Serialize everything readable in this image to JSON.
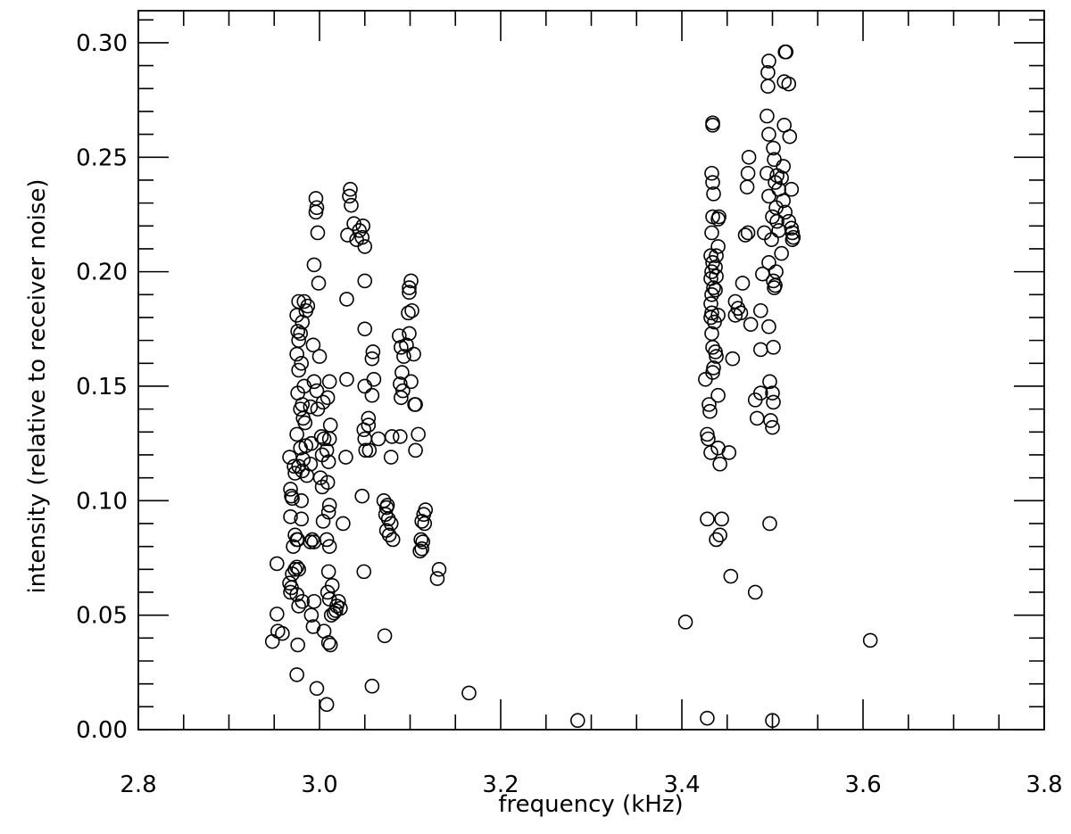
{
  "chart_data": {
    "type": "scatter",
    "x_label": "frequency (kHz)",
    "y_label": "intensity (relative to receiver noise)",
    "xlim": [
      2.8,
      3.8
    ],
    "ylim": [
      0,
      0.314
    ],
    "xticks": [
      2.8,
      {
        "value": 3,
        "label": "3.0"
      },
      3.2,
      3.4,
      3.6,
      3.8
    ],
    "yticks": [
      {
        "value": 0,
        "label": "0.00"
      },
      0.05,
      {
        "value": 0.1,
        "label": "0.10"
      },
      0.15,
      {
        "value": 0.2,
        "label": "0.20"
      },
      0.25,
      {
        "value": 0.3,
        "label": "0.30"
      }
    ],
    "xminorticks": [
      2.85,
      2.9,
      2.95,
      3.05,
      3.1,
      3.15,
      3.25,
      3.3,
      3.35,
      3.45,
      3.5,
      3.55,
      3.65,
      3.7,
      3.75
    ],
    "yminorticks": [
      0.01,
      0.02,
      0.03,
      0.04,
      0.06,
      0.07,
      0.08,
      0.09,
      0.11,
      0.12,
      0.13,
      0.14,
      0.16,
      0.17,
      0.18,
      0.19,
      0.21,
      0.22,
      0.23,
      0.24,
      0.26,
      0.27,
      0.28,
      0.29,
      0.31
    ],
    "color": "#000000",
    "x": [
      2.948,
      2.953,
      2.953,
      2.954,
      2.959,
      2.975,
      2.997,
      3.008,
      3.058,
      3.072,
      3.165,
      3.285,
      3.404,
      3.428,
      3.5,
      3.608,
      3.132,
      3.13,
      2.967,
      2.972,
      2.968,
      2.97,
      2.968,
      2.973,
      2.971,
      2.975,
      2.973,
      2.969,
      2.968,
      2.975,
      2.977,
      2.97,
      2.967,
      2.973,
      2.969,
      2.977,
      2.975,
      2.976,
      2.977,
      2.975,
      2.977,
      2.976,
      2.979,
      2.975,
      2.979,
      2.977,
      2.976,
      2.975,
      2.977,
      2.976,
      2.983,
      2.985,
      2.981,
      2.979,
      2.98,
      2.983,
      2.981,
      2.984,
      2.985,
      2.981,
      2.98,
      2.98,
      2.99,
      2.981,
      2.986,
      2.982,
      2.982,
      2.987,
      2.994,
      2.993,
      2.994,
      2.99,
      2.991,
      2.99,
      2.992,
      2.994,
      2.994,
      2.991,
      2.993,
      2.996,
      2.996,
      2.997,
      2.998,
      2.999,
      3.0,
      2.997,
      2.998,
      3.002,
      3.003,
      3.001,
      3.003,
      3.004,
      3.005,
      3.004,
      3.005,
      3.011,
      3.009,
      3.012,
      3.011,
      3.008,
      3.01,
      3.009,
      3.011,
      3.01,
      3.008,
      3.011,
      3.01,
      3.009,
      3.011,
      3.013,
      3.01,
      3.012,
      3.014,
      3.021,
      3.019,
      3.023,
      3.018,
      3.016,
      3.026,
      3.029,
      3.03,
      3.03,
      3.031,
      3.034,
      3.033,
      3.035,
      3.038,
      3.041,
      3.044,
      3.048,
      3.047,
      3.05,
      3.05,
      3.05,
      3.05,
      3.049,
      3.05,
      3.051,
      3.047,
      3.049,
      3.059,
      3.058,
      3.06,
      3.058,
      3.054,
      3.054,
      3.055,
      3.065,
      3.071,
      3.075,
      3.073,
      3.076,
      3.079,
      3.074,
      3.077,
      3.081,
      3.079,
      3.08,
      3.074,
      3.088,
      3.09,
      3.093,
      3.091,
      3.089,
      3.092,
      3.09,
      3.089,
      3.101,
      3.099,
      3.099,
      3.098,
      3.102,
      3.099,
      3.096,
      3.104,
      3.101,
      3.105,
      3.106,
      3.106,
      3.109,
      3.117,
      3.115,
      3.113,
      3.116,
      3.112,
      3.114,
      3.113,
      3.111,
      3.434,
      3.434,
      3.433,
      3.434,
      3.435,
      3.434,
      3.433,
      3.432,
      3.434,
      3.433,
      3.432,
      3.435,
      3.433,
      3.432,
      3.433,
      3.432,
      3.436,
      3.433,
      3.434,
      3.437,
      3.438,
      3.435,
      3.434,
      3.426,
      3.44,
      3.43,
      3.431,
      3.428,
      3.429,
      3.432,
      3.44,
      3.442,
      3.452,
      3.428,
      3.444,
      3.442,
      3.438,
      3.44,
      3.441,
      3.44,
      3.438,
      3.437,
      3.438,
      3.437,
      3.44,
      3.459,
      3.462,
      3.459,
      3.465,
      3.456,
      3.467,
      3.47,
      3.473,
      3.472,
      3.473,
      3.474,
      3.476,
      3.454,
      3.496,
      3.495,
      3.495,
      3.494,
      3.496,
      3.494,
      3.496,
      3.491,
      3.496,
      3.489,
      3.487,
      3.496,
      3.487,
      3.497,
      3.487,
      3.481,
      3.483,
      3.481,
      3.498,
      3.5,
      3.497,
      3.501,
      3.502,
      3.505,
      3.503,
      3.507,
      3.504,
      3.5,
      3.505,
      3.507,
      3.499,
      3.51,
      3.504,
      3.501,
      3.503,
      3.502,
      3.501,
      3.5,
      3.501,
      3.514,
      3.515,
      3.513,
      3.518,
      3.513,
      3.519,
      3.512,
      3.51,
      3.521,
      3.512,
      3.514,
      3.518,
      3.521,
      3.522,
      3.523,
      3.522
    ],
    "values": [
      0.0385,
      0.0725,
      0.0505,
      0.043,
      0.042,
      0.024,
      0.018,
      0.011,
      0.019,
      0.041,
      0.016,
      0.004,
      0.047,
      0.005,
      0.004,
      0.039,
      0.07,
      0.066,
      0.119,
      0.115,
      0.105,
      0.101,
      0.093,
      0.085,
      0.08,
      0.083,
      0.07,
      0.062,
      0.06,
      0.059,
      0.07,
      0.068,
      0.064,
      0.112,
      0.102,
      0.187,
      0.181,
      0.174,
      0.17,
      0.164,
      0.157,
      0.147,
      0.14,
      0.129,
      0.123,
      0.115,
      0.083,
      0.071,
      0.054,
      0.037,
      0.187,
      0.183,
      0.178,
      0.173,
      0.16,
      0.15,
      0.142,
      0.134,
      0.124,
      0.113,
      0.1,
      0.092,
      0.082,
      0.056,
      0.111,
      0.118,
      0.136,
      0.185,
      0.203,
      0.168,
      0.152,
      0.141,
      0.125,
      0.116,
      0.083,
      0.082,
      0.056,
      0.05,
      0.045,
      0.226,
      0.232,
      0.228,
      0.217,
      0.195,
      0.163,
      0.148,
      0.14,
      0.128,
      0.12,
      0.11,
      0.106,
      0.091,
      0.043,
      0.143,
      0.127,
      0.152,
      0.145,
      0.133,
      0.127,
      0.122,
      0.117,
      0.108,
      0.098,
      0.095,
      0.083,
      0.08,
      0.069,
      0.06,
      0.057,
      0.05,
      0.038,
      0.037,
      0.063,
      0.056,
      0.054,
      0.053,
      0.052,
      0.051,
      0.09,
      0.119,
      0.153,
      0.188,
      0.216,
      0.236,
      0.233,
      0.229,
      0.221,
      0.214,
      0.218,
      0.22,
      0.215,
      0.211,
      0.196,
      0.175,
      0.15,
      0.131,
      0.127,
      0.122,
      0.102,
      0.069,
      0.165,
      0.162,
      0.153,
      0.146,
      0.136,
      0.133,
      0.122,
      0.127,
      0.1,
      0.098,
      0.094,
      0.092,
      0.09,
      0.087,
      0.085,
      0.083,
      0.119,
      0.128,
      0.097,
      0.172,
      0.167,
      0.163,
      0.156,
      0.151,
      0.148,
      0.145,
      0.128,
      0.196,
      0.193,
      0.191,
      0.182,
      0.183,
      0.173,
      0.168,
      0.164,
      0.152,
      0.142,
      0.142,
      0.122,
      0.129,
      0.096,
      0.094,
      0.091,
      0.09,
      0.083,
      0.082,
      0.079,
      0.078,
      0.265,
      0.264,
      0.243,
      0.239,
      0.234,
      0.224,
      0.217,
      0.207,
      0.204,
      0.2,
      0.197,
      0.193,
      0.19,
      0.186,
      0.182,
      0.18,
      0.178,
      0.173,
      0.167,
      0.165,
      0.163,
      0.158,
      0.156,
      0.153,
      0.146,
      0.142,
      0.139,
      0.129,
      0.127,
      0.121,
      0.123,
      0.116,
      0.121,
      0.092,
      0.092,
      0.085,
      0.083,
      0.223,
      0.224,
      0.211,
      0.207,
      0.202,
      0.198,
      0.192,
      0.181,
      0.181,
      0.184,
      0.187,
      0.182,
      0.162,
      0.195,
      0.216,
      0.217,
      0.237,
      0.243,
      0.25,
      0.177,
      0.067,
      0.292,
      0.287,
      0.281,
      0.268,
      0.26,
      0.243,
      0.233,
      0.217,
      0.204,
      0.199,
      0.183,
      0.176,
      0.166,
      0.152,
      0.147,
      0.144,
      0.136,
      0.06,
      0.135,
      0.132,
      0.09,
      0.254,
      0.249,
      0.242,
      0.239,
      0.236,
      0.228,
      0.224,
      0.222,
      0.218,
      0.214,
      0.208,
      0.2,
      0.196,
      0.194,
      0.193,
      0.167,
      0.147,
      0.143,
      0.296,
      0.296,
      0.283,
      0.282,
      0.264,
      0.259,
      0.246,
      0.241,
      0.236,
      0.231,
      0.226,
      0.222,
      0.219,
      0.217,
      0.215,
      0.214
    ]
  }
}
